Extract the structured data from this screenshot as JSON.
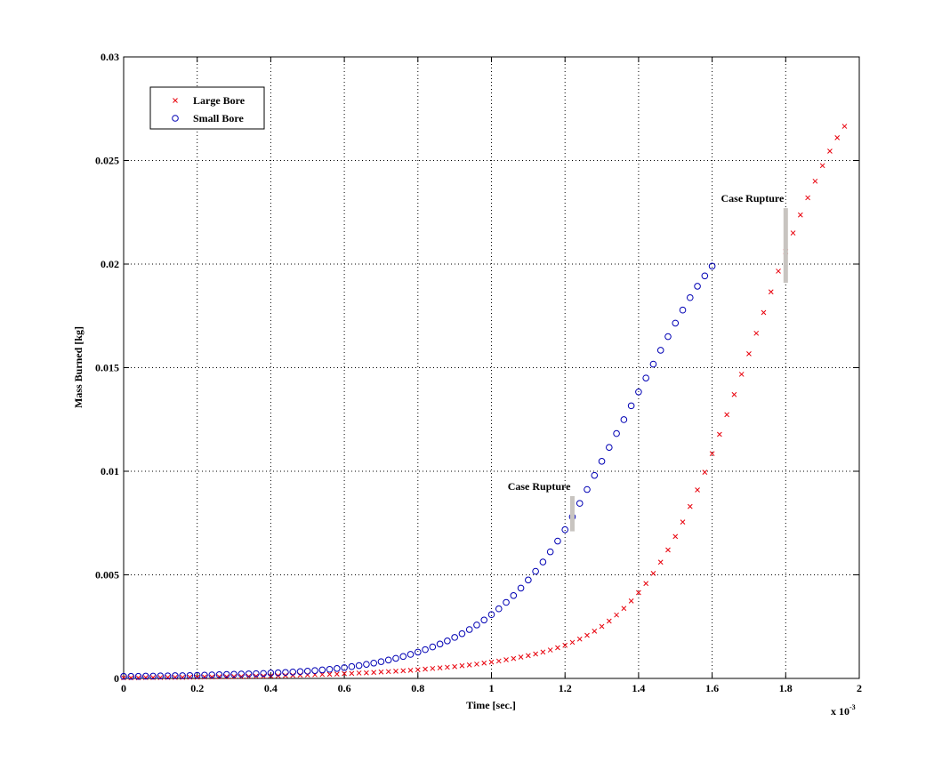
{
  "chart_data": {
    "type": "scatter",
    "xlabel": "Time [sec.]",
    "ylabel": "Mass Burned [kg]",
    "x_scale_label": "x 10",
    "x_scale_exponent": "-3",
    "xlim": [
      0,
      2
    ],
    "ylim": [
      0,
      0.03
    ],
    "xticks": [
      0,
      0.2,
      0.4,
      0.6,
      0.8,
      1,
      1.2,
      1.4,
      1.6,
      1.8,
      2
    ],
    "yticks": [
      0,
      0.005,
      0.01,
      0.015,
      0.02,
      0.025,
      0.03
    ],
    "grid": true,
    "legend": "upper left",
    "series": [
      {
        "name": "Large Bore",
        "color": "#e8000b",
        "marker": "x",
        "x": [
          0,
          0.02,
          0.04,
          0.06,
          0.08,
          0.1,
          0.12,
          0.14,
          0.16,
          0.18,
          0.2,
          0.22,
          0.24,
          0.26,
          0.28,
          0.3,
          0.32,
          0.34,
          0.36,
          0.38,
          0.4,
          0.42,
          0.44,
          0.46,
          0.48,
          0.5,
          0.52,
          0.54,
          0.56,
          0.58,
          0.6,
          0.62,
          0.64,
          0.66,
          0.68,
          0.7,
          0.72,
          0.74,
          0.76,
          0.78,
          0.8,
          0.82,
          0.84,
          0.86,
          0.88,
          0.9,
          0.92,
          0.94,
          0.96,
          0.98,
          1,
          1.02,
          1.04,
          1.06,
          1.08,
          1.1,
          1.12,
          1.14,
          1.16,
          1.18,
          1.2,
          1.22,
          1.24,
          1.26,
          1.28,
          1.3,
          1.32,
          1.34,
          1.36,
          1.38,
          1.4,
          1.42,
          1.44,
          1.46,
          1.48,
          1.5,
          1.52,
          1.54,
          1.56,
          1.58,
          1.6,
          1.62,
          1.64,
          1.66,
          1.68,
          1.7,
          1.72,
          1.74,
          1.76,
          1.78,
          1.8,
          1.82,
          1.84,
          1.86,
          1.88,
          1.9,
          1.92,
          1.94,
          1.96
        ],
        "values": [
          3e-05,
          3e-05,
          3e-05,
          4e-05,
          4e-05,
          4e-05,
          5e-05,
          5e-05,
          5e-05,
          6e-05,
          6e-05,
          7e-05,
          7e-05,
          8e-05,
          8e-05,
          9e-05,
          9e-05,
          0.0001,
          0.00011,
          0.00011,
          0.00012,
          0.00013,
          0.00014,
          0.00015,
          0.00016,
          0.00017,
          0.00018,
          0.00019,
          0.0002,
          0.00021,
          0.00023,
          0.00024,
          0.00026,
          0.00027,
          0.00029,
          0.00031,
          0.00033,
          0.00035,
          0.00037,
          0.00039,
          0.00042,
          0.00045,
          0.00048,
          0.00051,
          0.00054,
          0.00057,
          0.00061,
          0.00065,
          0.00069,
          0.00074,
          0.00079,
          0.00084,
          0.0009,
          0.00096,
          0.00103,
          0.0011,
          0.00118,
          0.00127,
          0.00137,
          0.00148,
          0.0016,
          0.00174,
          0.0019,
          0.00208,
          0.00228,
          0.00251,
          0.00277,
          0.00306,
          0.00338,
          0.00374,
          0.00414,
          0.00458,
          0.00507,
          0.00561,
          0.0062,
          0.00685,
          0.00755,
          0.0083,
          0.0091,
          0.00995,
          0.01085,
          0.01178,
          0.01273,
          0.0137,
          0.01468,
          0.01567,
          0.01666,
          0.01766,
          0.01866,
          0.01966,
          0.0206,
          0.0215,
          0.02237,
          0.0232,
          0.024,
          0.02475,
          0.02545,
          0.0261,
          0.02665
        ]
      },
      {
        "name": "Small Bore",
        "color": "#0000b4",
        "marker": "o",
        "x": [
          0,
          0.02,
          0.04,
          0.06,
          0.08,
          0.1,
          0.12,
          0.14,
          0.16,
          0.18,
          0.2,
          0.22,
          0.24,
          0.26,
          0.28,
          0.3,
          0.32,
          0.34,
          0.36,
          0.38,
          0.4,
          0.42,
          0.44,
          0.46,
          0.48,
          0.5,
          0.52,
          0.54,
          0.56,
          0.58,
          0.6,
          0.62,
          0.64,
          0.66,
          0.68,
          0.7,
          0.72,
          0.74,
          0.76,
          0.78,
          0.8,
          0.82,
          0.84,
          0.86,
          0.88,
          0.9,
          0.92,
          0.94,
          0.96,
          0.98,
          1,
          1.02,
          1.04,
          1.06,
          1.08,
          1.1,
          1.12,
          1.14,
          1.16,
          1.18,
          1.2,
          1.22,
          1.24,
          1.26,
          1.28,
          1.3,
          1.32,
          1.34,
          1.36,
          1.38,
          1.4,
          1.42,
          1.44,
          1.46,
          1.48,
          1.5,
          1.52,
          1.54,
          1.56,
          1.58,
          1.6
        ],
        "values": [
          0.0001,
          0.0001,
          0.0001,
          0.00011,
          0.00011,
          0.00012,
          0.00012,
          0.00013,
          0.00013,
          0.00014,
          0.00015,
          0.00016,
          0.00017,
          0.00018,
          0.00019,
          0.0002,
          0.00021,
          0.00022,
          0.00023,
          0.00024,
          0.00026,
          0.00027,
          0.00029,
          0.00031,
          0.00033,
          0.00035,
          0.00038,
          0.00041,
          0.00044,
          0.00048,
          0.00052,
          0.00057,
          0.00062,
          0.00068,
          0.00074,
          0.00081,
          0.00089,
          0.00097,
          0.00106,
          0.00116,
          0.00127,
          0.00139,
          0.00152,
          0.00166,
          0.00181,
          0.00198,
          0.00216,
          0.00236,
          0.00258,
          0.00282,
          0.00308,
          0.00336,
          0.00367,
          0.004,
          0.00436,
          0.00475,
          0.00517,
          0.00562,
          0.00611,
          0.00663,
          0.00718,
          0.0078,
          0.00845,
          0.00912,
          0.0098,
          0.01048,
          0.01115,
          0.01182,
          0.01249,
          0.01316,
          0.01383,
          0.0145,
          0.01517,
          0.01584,
          0.0165,
          0.01715,
          0.01778,
          0.01838,
          0.01893,
          0.01943,
          0.0199
        ]
      }
    ],
    "annotations": [
      {
        "text": "Case Rupture",
        "x": 1.22,
        "y": [
          0.0071,
          0.0088
        ]
      },
      {
        "text": "Case Rupture",
        "x": 1.8,
        "y": [
          0.0191,
          0.0227
        ]
      }
    ]
  }
}
